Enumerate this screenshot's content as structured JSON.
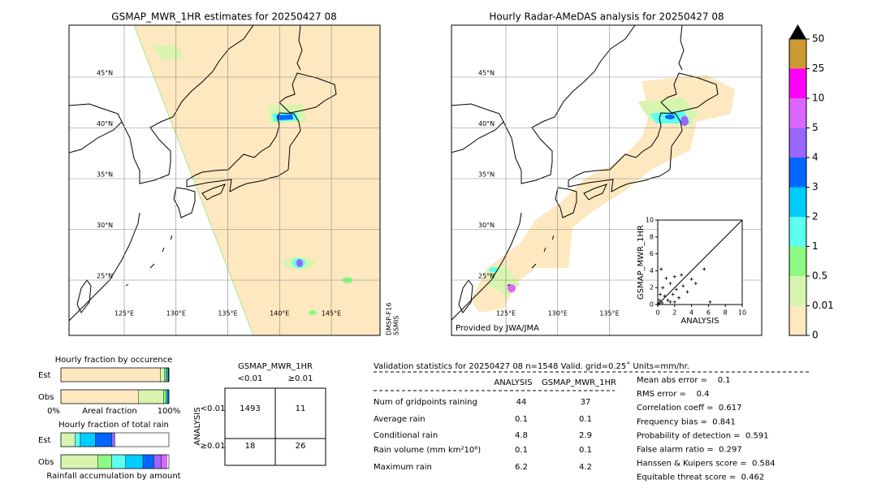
{
  "map_left": {
    "title": "GSMAP_MWR_1HR estimates for 20250427 08",
    "lat_ticks": [
      {
        "value": 45,
        "label": "45°N"
      },
      {
        "value": 40,
        "label": "40°N"
      },
      {
        "value": 35,
        "label": "35°N"
      },
      {
        "value": 30,
        "label": "30°N"
      },
      {
        "value": 25,
        "label": "25°N"
      }
    ],
    "lon_ticks": [
      {
        "value": 125,
        "label": "125°E"
      },
      {
        "value": 130,
        "label": "130°E"
      },
      {
        "value": 135,
        "label": "135°E"
      },
      {
        "value": 140,
        "label": "140°E"
      },
      {
        "value": 145,
        "label": "145°E"
      }
    ],
    "side_label": [
      "DMSP-F16",
      "SSMIS"
    ]
  },
  "map_right": {
    "title": "Hourly Radar-AMeDAS analysis for 20250427 08",
    "lat_ticks": [
      {
        "value": 45,
        "label": "45°N"
      },
      {
        "value": 40,
        "label": "40°N"
      },
      {
        "value": 35,
        "label": "35°N"
      },
      {
        "value": 30,
        "label": "30°N"
      },
      {
        "value": 25,
        "label": "25°N"
      }
    ],
    "lon_ticks": [
      {
        "value": 125,
        "label": "125°E"
      },
      {
        "value": 130,
        "label": "130°E"
      },
      {
        "value": 135,
        "label": "135°E"
      }
    ],
    "credit": "Provided by JWA/JMA"
  },
  "scatter": {
    "type": "scatter",
    "xlabel": "ANALYSIS",
    "ylabel": "GSMAP_MWR_1HR",
    "xlim": [
      0,
      10
    ],
    "ylim": [
      0,
      10
    ],
    "xticks": [
      0,
      2,
      4,
      6,
      8,
      10
    ],
    "yticks": [
      0,
      2,
      4,
      6,
      8,
      10
    ],
    "x": [
      0.1,
      0.2,
      0.3,
      0.5,
      0.6,
      0.8,
      1.0,
      1.2,
      1.5,
      1.8,
      2.0,
      2.2,
      2.5,
      2.8,
      3.0,
      3.5,
      4.0,
      4.5,
      5.5,
      6.2,
      1.5,
      0.4,
      2.0
    ],
    "y": [
      0.1,
      0.5,
      1.2,
      0.2,
      2.0,
      1.0,
      3.1,
      0.5,
      2.5,
      1.2,
      3.3,
      1.8,
      0.8,
      3.5,
      2.2,
      1.5,
      3.0,
      2.5,
      4.2,
      0.3,
      0.3,
      4.2,
      0.3
    ]
  },
  "colorbar": {
    "levels": [
      0,
      0.01,
      0.5,
      1,
      2,
      3,
      4,
      5,
      10,
      25,
      50
    ],
    "colors": [
      "#fde8c0",
      "#d8f5b0",
      "#8cfa82",
      "#5cfff0",
      "#00ccff",
      "#0066ff",
      "#9966ff",
      "#dd66ff",
      "#ff00ff",
      "#cc9933"
    ]
  },
  "occurrence": {
    "title": "Hourly fraction by occurence",
    "xlabel": "Areal fraction",
    "left_label": "0%",
    "right_label": "100%",
    "rows": [
      {
        "name": "Est",
        "values": [
          92,
          4,
          1.5,
          1,
          1,
          0.5
        ],
        "colors": [
          "#fde8c0",
          "#d8f5b0",
          "#8cfa82",
          "#5cfff0",
          "#00ccff",
          "#0066ff"
        ]
      },
      {
        "name": "Obs",
        "values": [
          72,
          23,
          2.5,
          1.5,
          1
        ],
        "colors": [
          "#fde8c0",
          "#d8f5b0",
          "#8cfa82",
          "#00ccff",
          "#0066ff"
        ]
      }
    ]
  },
  "total_rain": {
    "title": "Hourly fraction of total rain",
    "xlabel": "Rainfall accumulation by amount",
    "rows": [
      {
        "name": "Est",
        "values": [
          13,
          5,
          14,
          15,
          3
        ],
        "colors": [
          "#d8f5b0",
          "#5cfff0",
          "#00ccff",
          "#0066ff",
          "#9966ff"
        ]
      },
      {
        "name": "Obs",
        "values": [
          34,
          13,
          13,
          16,
          10,
          7,
          5
        ],
        "colors": [
          "#d8f5b0",
          "#8cfa82",
          "#5cfff0",
          "#00ccff",
          "#0066ff",
          "#9966ff",
          "#dd66ff"
        ]
      }
    ]
  },
  "contingency": {
    "title": "GSMAP_MWR_1HR",
    "col_labels": [
      "<0.01",
      "≥0.01"
    ],
    "row_title": "ANALYSIS",
    "row_labels": [
      "<0.01",
      "≥0.01"
    ],
    "cells": [
      [
        1493,
        11
      ],
      [
        18,
        26
      ]
    ]
  },
  "validation": {
    "header": "Validation statistics for 20250427 08  n=1548 Valid. grid=0.25˚ Units=mm/hr.",
    "columns": [
      "ANALYSIS",
      "GSMAP_MWR_1HR"
    ],
    "rows": [
      {
        "label": "Num of gridpoints raining",
        "values": [
          "44",
          "37"
        ]
      },
      {
        "label": "Average rain",
        "values": [
          "0.1",
          "0.1"
        ]
      },
      {
        "label": "Conditional rain",
        "values": [
          "4.8",
          "2.9"
        ]
      },
      {
        "label": "Rain volume (mm km²10⁶)",
        "values": [
          "0.1",
          "0.1"
        ]
      },
      {
        "label": "Maximum rain",
        "values": [
          "6.2",
          "4.2"
        ]
      }
    ],
    "scores": [
      "Mean abs error =    0.1",
      "RMS error =    0.4",
      "Correlation coeff =  0.617",
      "Frequency bias =  0.841",
      "Probability of detection =  0.591",
      "False alarm ratio =  0.297",
      "Hanssen & Kuipers score =  0.584",
      "Equitable threat score =  0.462"
    ]
  }
}
